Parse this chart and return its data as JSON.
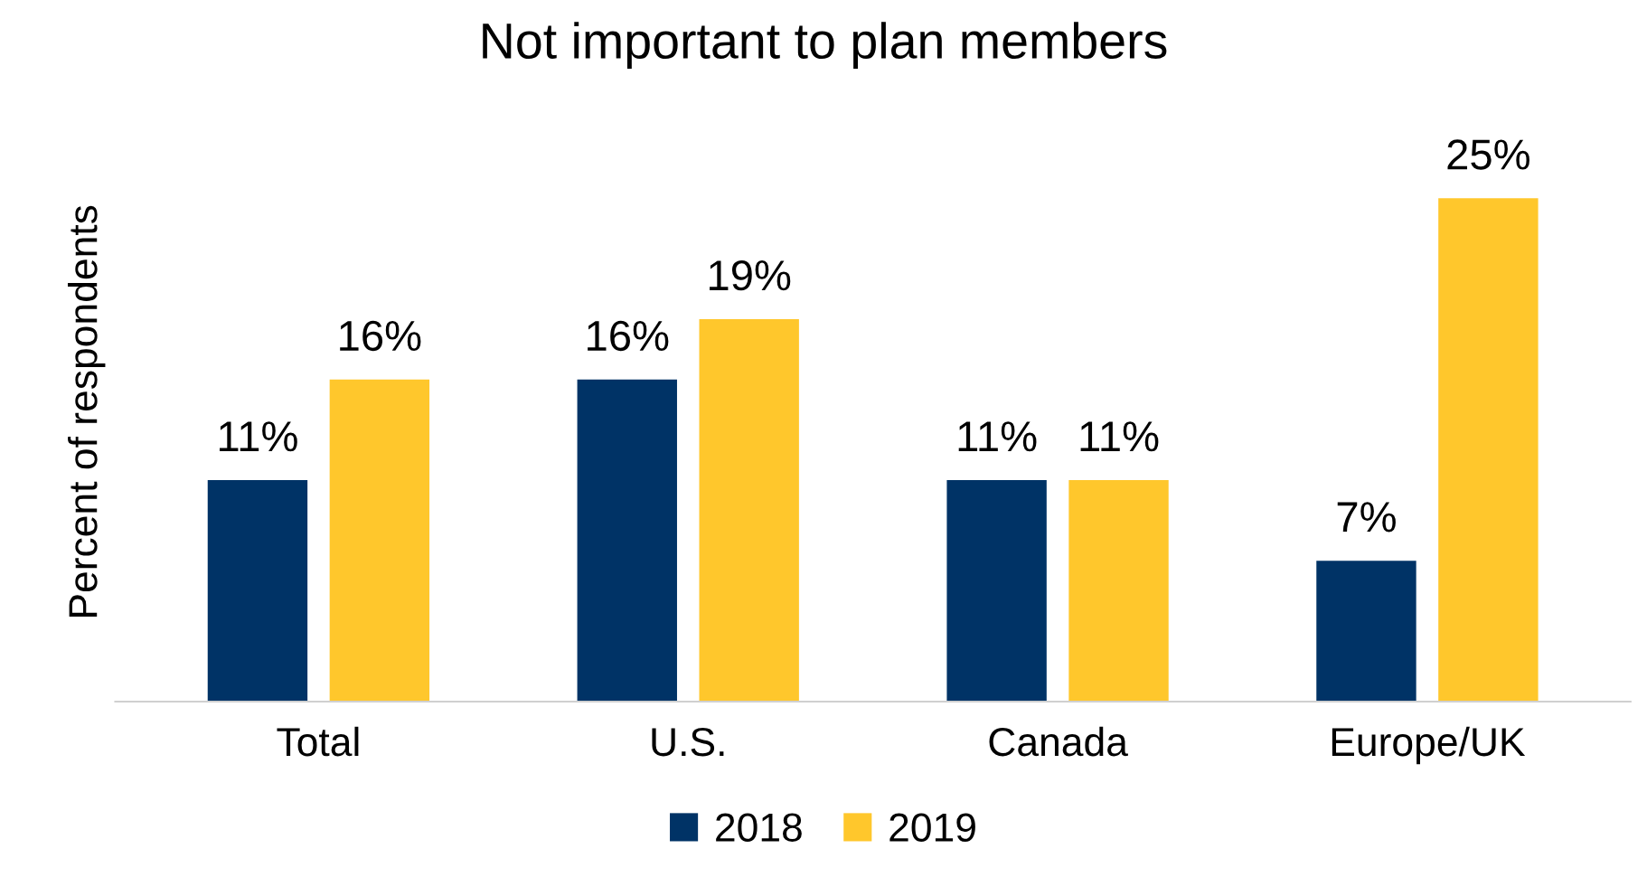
{
  "chart_data": {
    "type": "bar",
    "title": "Not important to plan members",
    "ylabel": "Percent of respondents",
    "categories": [
      "Total",
      "U.S.",
      "Canada",
      "Europe/UK"
    ],
    "series": [
      {
        "name": "2018",
        "color": "#003366",
        "values": [
          11,
          16,
          11,
          7
        ],
        "value_labels": [
          "11%",
          "16%",
          "11%",
          "7%"
        ]
      },
      {
        "name": "2019",
        "color": "#ffc72c",
        "values": [
          16,
          19,
          11,
          25
        ],
        "value_labels": [
          "16%",
          "19%",
          "11%",
          "25%"
        ]
      }
    ],
    "tick_labels": "x",
    "grid": false,
    "legend": "bottom"
  }
}
